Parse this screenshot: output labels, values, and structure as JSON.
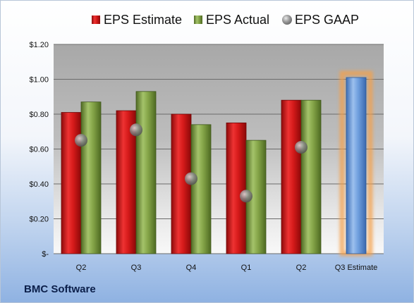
{
  "company": "BMC Software",
  "chart_data": {
    "type": "bar",
    "categories": [
      "Q2",
      "Q3",
      "Q4",
      "Q1",
      "Q2",
      "Q3 Estimate"
    ],
    "series": [
      {
        "name": "EPS Estimate",
        "color": "#d01818",
        "values": [
          0.81,
          0.82,
          0.8,
          0.75,
          0.88,
          null
        ]
      },
      {
        "name": "EPS Actual",
        "color": "#7a9a3e",
        "values": [
          0.87,
          0.93,
          0.74,
          0.65,
          0.88,
          null
        ]
      },
      {
        "name": "EPS GAAP",
        "color": "#9a9a9a",
        "values": [
          0.65,
          0.71,
          0.43,
          0.33,
          0.61,
          null
        ]
      },
      {
        "name": "",
        "color": "#5a8fd6",
        "values": [
          null,
          null,
          null,
          null,
          null,
          1.01
        ]
      }
    ],
    "y_ticks": [
      "$-",
      "$0.20",
      "$0.40",
      "$0.60",
      "$0.80",
      "$1.00",
      "$1.20"
    ],
    "ylim": [
      0,
      1.2
    ],
    "grid": true,
    "legend_position": "top"
  }
}
